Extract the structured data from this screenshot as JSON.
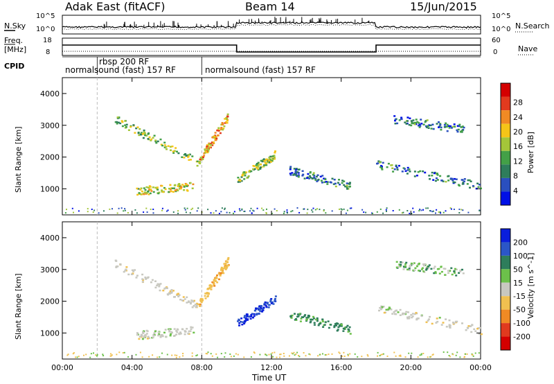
{
  "header": {
    "title_left": "Adak East (fitACF)",
    "title_center": "Beam 14",
    "title_right": "15/Jun/2015"
  },
  "left_labels": {
    "nsky": "N.Sky",
    "freq_line1": "Freq.",
    "freq_line2": "[MHz]",
    "cpid": "CPID"
  },
  "right_labels": {
    "nsearch": "N.Search",
    "nave": "Nave"
  },
  "ticks": {
    "noise_top": "10^5",
    "noise_bottom": "10^0",
    "freq_top": "18",
    "freq_bottom": "8",
    "nave_top": "60",
    "nave_bottom": "0"
  },
  "cpid_entries": [
    {
      "text": "normalsound (fast) 157 RF",
      "start_hour": 0.0
    },
    {
      "text": "rbsp 200 RF",
      "start_hour": 2.0
    },
    {
      "text": "normalsound (fast) 157 RF",
      "start_hour": 8.0
    }
  ],
  "cpid_second_row": "normalsound (fast) 157 RF",
  "x_axis": {
    "label": "Time UT",
    "ticks": [
      "00:00",
      "04:00",
      "08:00",
      "12:00",
      "16:00",
      "20:00",
      "00:00"
    ]
  },
  "power_panel": {
    "ylabel": "Slant Range [km]",
    "yticks": [
      "1000",
      "2000",
      "3000",
      "4000"
    ],
    "colorbar_label": "Power [dB]",
    "colorbar_ticks": [
      "4",
      "8",
      "12",
      "16",
      "20",
      "24",
      "28"
    ],
    "colors": [
      "#0010e6",
      "#2a4fbf",
      "#2e7d5b",
      "#43a047",
      "#a4c639",
      "#f5c518",
      "#f08a24",
      "#e23a1e",
      "#d40000"
    ]
  },
  "velocity_panel": {
    "ylabel": "Slant Range [km]",
    "yticks": [
      "1000",
      "2000",
      "3000",
      "4000"
    ],
    "colorbar_label": "Velocity [m s^-1]",
    "colorbar_ticks": [
      "200",
      "100",
      "50",
      "15",
      "-15",
      "-50",
      "-100",
      "-200"
    ],
    "colors": [
      "#0a1edc",
      "#2b56c8",
      "#2e7d5b",
      "#6cc04a",
      "#c8c8c0",
      "#f0c050",
      "#f08a24",
      "#e03a1e",
      "#d40000"
    ]
  },
  "chart_data": {
    "type": "heatmap",
    "x_range_hours": [
      0,
      24
    ],
    "y_range_km": [
      180,
      4500
    ],
    "cpid_boundaries_hours": [
      2.0,
      8.0
    ],
    "noise_sky": {
      "low_hours": [
        0,
        10,
        18,
        24
      ],
      "note_levels": "higher between 10 and 18"
    },
    "frequency": {
      "segments": [
        {
          "from": 0,
          "to": 10,
          "value": 14
        },
        {
          "from": 10,
          "to": 18,
          "value": 10
        },
        {
          "from": 18,
          "to": 24,
          "value": 14
        }
      ]
    },
    "echo_regions": [
      {
        "name": "arc_a",
        "t_start": 3.0,
        "t_end": 7.8,
        "range_start": 3200,
        "range_end": 1850,
        "power_db": 14,
        "velocity": -5
      },
      {
        "name": "arc_b",
        "t_start": 7.8,
        "t_end": 9.5,
        "range_start": 1900,
        "range_end": 3300,
        "power_db": 20,
        "velocity": -40
      },
      {
        "name": "lower_band",
        "t_start": 4.2,
        "t_end": 7.5,
        "range_start": 950,
        "range_end": 1100,
        "power_db": 16,
        "velocity": 0
      },
      {
        "name": "midday_patch",
        "t_start": 10.0,
        "t_end": 12.2,
        "range_start": 1300,
        "range_end": 2100,
        "power_db": 14,
        "velocity": 150
      },
      {
        "name": "afternoon_band",
        "t_start": 13.0,
        "t_end": 16.5,
        "range_start": 1600,
        "range_end": 1100,
        "power_db": 8,
        "velocity": 40
      },
      {
        "name": "evening_bands",
        "t_start": 18.0,
        "t_end": 24.0,
        "range_start": 1800,
        "range_end": 1100,
        "power_db": 8,
        "velocity": 0
      },
      {
        "name": "evening_high",
        "t_start": 19.0,
        "t_end": 23.0,
        "range_start": 3200,
        "range_end": 2900,
        "power_db": 8,
        "velocity": 20
      }
    ]
  }
}
